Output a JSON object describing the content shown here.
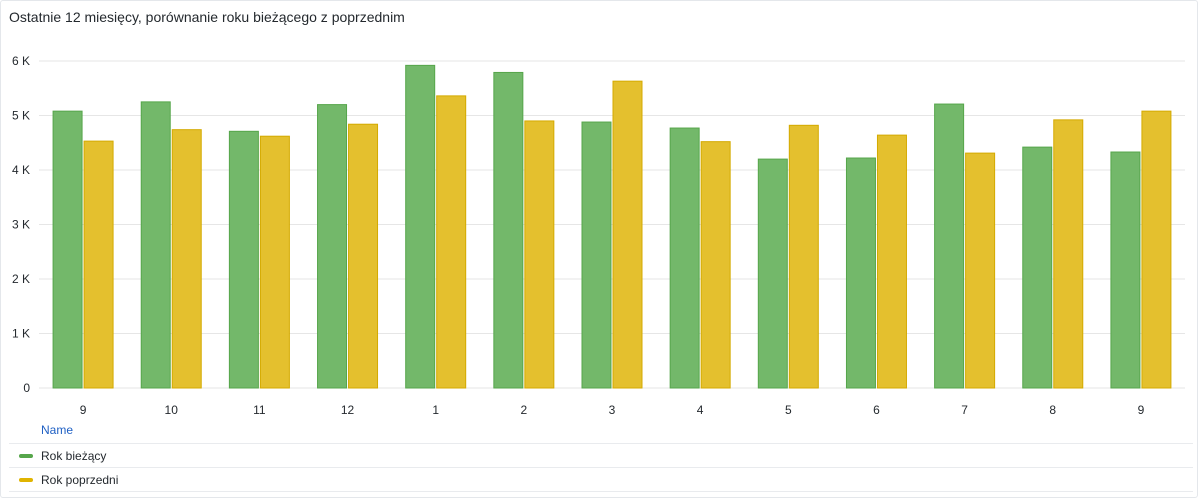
{
  "panel": {
    "title": "Ostatnie 12 miesięcy, porównanie roku bieżącego z poprzednim",
    "xaxis_label": "Name"
  },
  "chart_data": {
    "type": "bar",
    "categories": [
      "9",
      "10",
      "11",
      "12",
      "1",
      "2",
      "3",
      "4",
      "5",
      "6",
      "7",
      "8",
      "9"
    ],
    "series": [
      {
        "name": "Rok bieżący",
        "color": "#73b86a",
        "values": [
          5080,
          5250,
          4710,
          5200,
          5920,
          5790,
          4880,
          4770,
          4200,
          4220,
          5210,
          4420,
          4330
        ]
      },
      {
        "name": "Rok poprzedni",
        "color": "#e4c02e",
        "values": [
          4530,
          4740,
          4620,
          4840,
          5360,
          4900,
          5630,
          4520,
          4820,
          4640,
          4310,
          4920,
          5080
        ]
      }
    ],
    "yticks": [
      "0",
      "1 K",
      "2 K",
      "3 K",
      "4 K",
      "5 K",
      "6 K"
    ],
    "ylim": [
      0,
      6000
    ],
    "grid": true,
    "legend": "bottom"
  }
}
